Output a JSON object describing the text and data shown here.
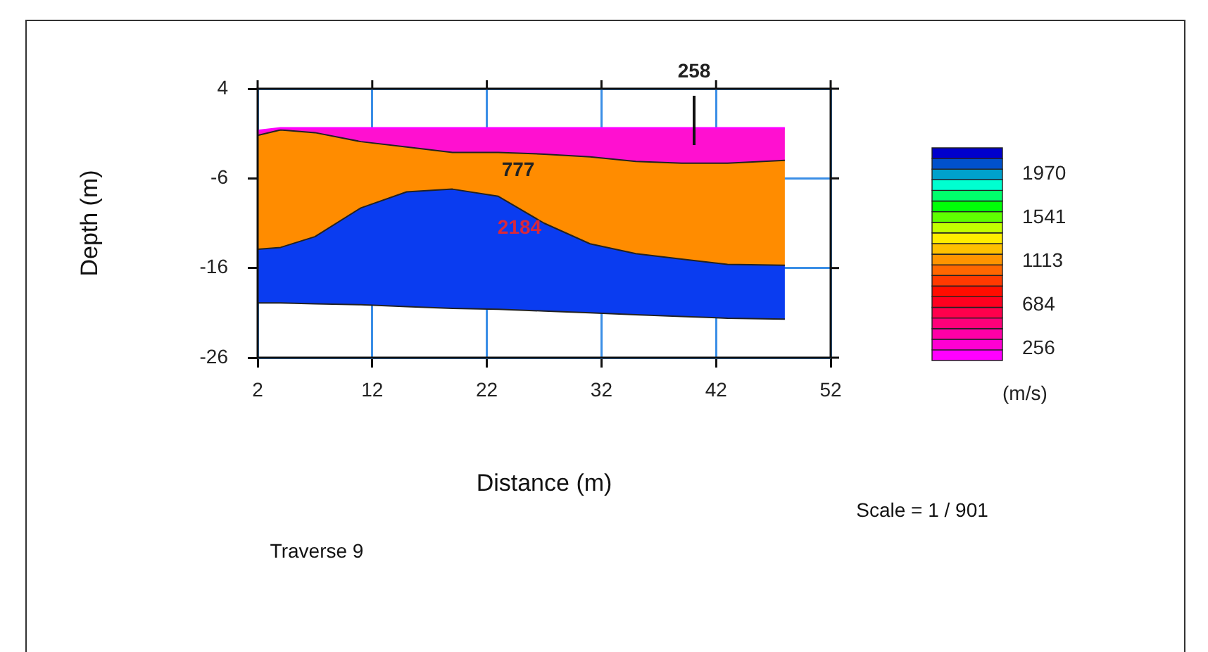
{
  "chart_data": {
    "type": "area",
    "xlabel": "Distance (m)",
    "ylabel": "Depth (m)",
    "clabel": "(m/s)",
    "x": [
      2,
      4,
      7,
      11,
      15,
      19,
      23,
      27,
      31,
      35,
      39,
      43,
      48
    ],
    "series": [
      {
        "type": "line",
        "color": "#ff00ff",
        "values": [
          -0.7,
          -0.4,
          -0.4,
          -0.4,
          -0.4,
          -0.4,
          -0.4,
          -0.4,
          -0.4,
          -0.4,
          -0.4,
          -0.4,
          -0.4
        ]
      },
      {
        "color": "#ff10d0",
        "values": [
          -1.2,
          -0.6,
          -0.9,
          -1.9,
          -2.5,
          -3.1,
          -3.1,
          -3.3,
          -3.6,
          -4.1,
          -4.3,
          -4.3,
          -4.0
        ]
      },
      {
        "color": "#ff8c00",
        "values": [
          -13.9,
          -13.7,
          -12.5,
          -9.3,
          -7.5,
          -7.2,
          -8.0,
          -11.0,
          -13.3,
          -14.4,
          -15.0,
          -15.6,
          -15.7
        ]
      },
      {
        "color": "#0a3cf0",
        "values": [
          -19.9,
          -19.9,
          -20.0,
          -20.1,
          -20.3,
          -20.5,
          -20.6,
          -20.8,
          -21.0,
          -21.2,
          -21.4,
          -21.6,
          -21.7
        ]
      }
    ],
    "xlim": [
      2,
      52
    ],
    "xticks": [
      2,
      12,
      22,
      32,
      42,
      52
    ],
    "ylim": [
      -26,
      4
    ],
    "yticks": [
      4,
      -6,
      -16,
      -26
    ],
    "clim": [
      140,
      2230
    ],
    "cticks": [
      256,
      684,
      1113,
      1541,
      1970
    ],
    "grid": true,
    "legend": false,
    "annotations": [
      "258",
      "777",
      "2184",
      "Scale = 1 / 901",
      "Traverse 9"
    ]
  }
}
